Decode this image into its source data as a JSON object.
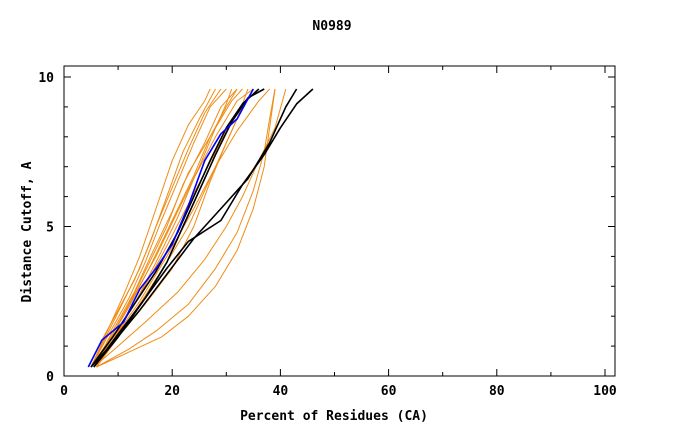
{
  "chart_data": {
    "type": "line",
    "title": "N0989",
    "xlabel": "Percent of Residues (CA)",
    "ylabel": "Distance Cutoff, A",
    "xlim": [
      0,
      100
    ],
    "ylim": [
      0,
      10
    ],
    "x_ticks": [
      0,
      20,
      40,
      60,
      80,
      100
    ],
    "y_ticks": [
      0,
      5,
      10
    ],
    "grid": false,
    "colors": {
      "orange": "#f08c14",
      "black": "#000000",
      "blue": "#0000ff"
    },
    "series": [
      {
        "name": "orange-1",
        "color": "orange",
        "points": [
          [
            4.5,
            0.3
          ],
          [
            7,
            1.2
          ],
          [
            10,
            2.2
          ],
          [
            13,
            3.2
          ],
          [
            16,
            4.5
          ],
          [
            19,
            6
          ],
          [
            22,
            7.5
          ],
          [
            25,
            8.6
          ],
          [
            28,
            9.6
          ]
        ]
      },
      {
        "name": "orange-2",
        "color": "orange",
        "points": [
          [
            5,
            0.3
          ],
          [
            8,
            1.4
          ],
          [
            11,
            2.5
          ],
          [
            14,
            3.6
          ],
          [
            17,
            5
          ],
          [
            20,
            6.3
          ],
          [
            23,
            7.6
          ],
          [
            26,
            8.8
          ],
          [
            29,
            9.6
          ]
        ]
      },
      {
        "name": "orange-3",
        "color": "orange",
        "points": [
          [
            5,
            0.3
          ],
          [
            8,
            1.3
          ],
          [
            12,
            2.6
          ],
          [
            15,
            3.8
          ],
          [
            18,
            5.2
          ],
          [
            21,
            6.5
          ],
          [
            24,
            7.8
          ],
          [
            27,
            9
          ],
          [
            30,
            9.6
          ]
        ]
      },
      {
        "name": "orange-4",
        "color": "orange",
        "points": [
          [
            5.5,
            0.3
          ],
          [
            9,
            1.4
          ],
          [
            12,
            2.4
          ],
          [
            15,
            3.5
          ],
          [
            19,
            5
          ],
          [
            22,
            6.4
          ],
          [
            26,
            7.8
          ],
          [
            29,
            9
          ],
          [
            32,
            9.6
          ]
        ]
      },
      {
        "name": "orange-5",
        "color": "orange",
        "points": [
          [
            5.5,
            0.3
          ],
          [
            9,
            1.5
          ],
          [
            13,
            2.8
          ],
          [
            16,
            4
          ],
          [
            20,
            5.5
          ],
          [
            23,
            6.8
          ],
          [
            27,
            8
          ],
          [
            31,
            9.2
          ],
          [
            33,
            9.6
          ]
        ]
      },
      {
        "name": "orange-6",
        "color": "orange",
        "points": [
          [
            6,
            0.3
          ],
          [
            9,
            1.2
          ],
          [
            13,
            2.4
          ],
          [
            17,
            3.8
          ],
          [
            21,
            5.3
          ],
          [
            24,
            6.6
          ],
          [
            28,
            8
          ],
          [
            32,
            9.2
          ],
          [
            35,
            9.6
          ]
        ]
      },
      {
        "name": "orange-7",
        "color": "orange",
        "points": [
          [
            6,
            0.3
          ],
          [
            10,
            1.5
          ],
          [
            14,
            2.7
          ],
          [
            18,
            4
          ],
          [
            22,
            5.4
          ],
          [
            26,
            6.8
          ],
          [
            30,
            8.2
          ],
          [
            34,
            9.3
          ],
          [
            37,
            9.6
          ]
        ]
      },
      {
        "name": "orange-8",
        "color": "orange",
        "points": [
          [
            6,
            0.3
          ],
          [
            10,
            1.3
          ],
          [
            14,
            2.4
          ],
          [
            19,
            3.8
          ],
          [
            23,
            5
          ],
          [
            26,
            6.2
          ],
          [
            29,
            7.4
          ],
          [
            32,
            8.6
          ],
          [
            34,
            9.6
          ]
        ]
      },
      {
        "name": "orange-9",
        "color": "orange",
        "points": [
          [
            6,
            0.3
          ],
          [
            10,
            1.3
          ],
          [
            15,
            2.4
          ],
          [
            20,
            3.6
          ],
          [
            24,
            5
          ],
          [
            27,
            6.5
          ],
          [
            30,
            7.8
          ],
          [
            33,
            9
          ],
          [
            35,
            9.6
          ]
        ]
      },
      {
        "name": "orange-10",
        "color": "orange",
        "points": [
          [
            6,
            0.3
          ],
          [
            12,
            0.8
          ],
          [
            18,
            1.3
          ],
          [
            23,
            2
          ],
          [
            28,
            3
          ],
          [
            32,
            4.2
          ],
          [
            35,
            5.6
          ],
          [
            37,
            7
          ],
          [
            38,
            8.3
          ],
          [
            39,
            9.6
          ]
        ]
      },
      {
        "name": "orange-11",
        "color": "orange",
        "points": [
          [
            6,
            0.3
          ],
          [
            12,
            0.9
          ],
          [
            17,
            1.5
          ],
          [
            23,
            2.4
          ],
          [
            28,
            3.6
          ],
          [
            32,
            4.8
          ],
          [
            35,
            6.2
          ],
          [
            37,
            7.5
          ],
          [
            38,
            8.6
          ],
          [
            39,
            9.6
          ]
        ]
      },
      {
        "name": "orange-12",
        "color": "orange",
        "points": [
          [
            5.5,
            0.3
          ],
          [
            10,
            1
          ],
          [
            15,
            1.8
          ],
          [
            21,
            2.8
          ],
          [
            26,
            3.9
          ],
          [
            30,
            5
          ],
          [
            33,
            6
          ],
          [
            36,
            7.2
          ],
          [
            39,
            8.3
          ],
          [
            41,
            9.6
          ]
        ]
      },
      {
        "name": "orange-13",
        "color": "orange",
        "points": [
          [
            5,
            0.3
          ],
          [
            9,
            1.2
          ],
          [
            14,
            2.5
          ],
          [
            19,
            4
          ],
          [
            24,
            5.6
          ],
          [
            28,
            7
          ],
          [
            32,
            8.2
          ],
          [
            36,
            9.2
          ],
          [
            38,
            9.6
          ]
        ]
      },
      {
        "name": "orange-14",
        "color": "orange",
        "points": [
          [
            5,
            0.3
          ],
          [
            9,
            1.4
          ],
          [
            13,
            2.7
          ],
          [
            17,
            4
          ],
          [
            21,
            5.5
          ],
          [
            25,
            7
          ],
          [
            28,
            8.3
          ],
          [
            30,
            9.1
          ],
          [
            31,
            9.6
          ]
        ]
      },
      {
        "name": "orange-15",
        "color": "orange",
        "points": [
          [
            5.5,
            0.3
          ],
          [
            8,
            1.1
          ],
          [
            12,
            2.3
          ],
          [
            16,
            3.7
          ],
          [
            20,
            5.2
          ],
          [
            24,
            6.7
          ],
          [
            27,
            8
          ],
          [
            30,
            9
          ],
          [
            32,
            9.6
          ]
        ]
      },
      {
        "name": "orange-16",
        "color": "orange",
        "points": [
          [
            5,
            0.3
          ],
          [
            7.5,
            1.3
          ],
          [
            11,
            2.7
          ],
          [
            14,
            4
          ],
          [
            17,
            5.6
          ],
          [
            20,
            7.2
          ],
          [
            23,
            8.4
          ],
          [
            26,
            9.2
          ],
          [
            27,
            9.6
          ]
        ]
      },
      {
        "name": "black-1",
        "color": "black",
        "points": [
          [
            5,
            0.3
          ],
          [
            9,
            1.1
          ],
          [
            14,
            2.2
          ],
          [
            19,
            3.4
          ],
          [
            24,
            4.6
          ],
          [
            29,
            5.6
          ],
          [
            34,
            6.6
          ],
          [
            38,
            7.8
          ],
          [
            41,
            9
          ],
          [
            43,
            9.6
          ]
        ]
      },
      {
        "name": "black-2",
        "color": "black",
        "points": [
          [
            5.5,
            0.3
          ],
          [
            10,
            1.3
          ],
          [
            15,
            2.6
          ],
          [
            19,
            3.6
          ],
          [
            23,
            4.5
          ],
          [
            29,
            5.2
          ],
          [
            33,
            6.4
          ],
          [
            37,
            7.4
          ],
          [
            40,
            8.3
          ],
          [
            43,
            9.1
          ],
          [
            46,
            9.6
          ]
        ]
      },
      {
        "name": "black-3",
        "color": "black",
        "points": [
          [
            5,
            0.3
          ],
          [
            9,
            1.3
          ],
          [
            13,
            2.4
          ],
          [
            17,
            3.5
          ],
          [
            21,
            4.8
          ],
          [
            24,
            6
          ],
          [
            27,
            7.2
          ],
          [
            30,
            8.3
          ],
          [
            33,
            9.1
          ],
          [
            36,
            9.6
          ]
        ]
      },
      {
        "name": "black-4",
        "color": "black",
        "points": [
          [
            5.5,
            0.3
          ],
          [
            10,
            1.4
          ],
          [
            15,
            2.6
          ],
          [
            19,
            3.8
          ],
          [
            22,
            5
          ],
          [
            25,
            6.2
          ],
          [
            28,
            7.4
          ],
          [
            31,
            8.5
          ],
          [
            34,
            9.3
          ],
          [
            37,
            9.6
          ]
        ]
      },
      {
        "name": "blue-1",
        "color": "blue",
        "points": [
          [
            4.5,
            0.3
          ],
          [
            7,
            1.2
          ],
          [
            11,
            1.8
          ],
          [
            14,
            2.9
          ],
          [
            17,
            3.6
          ],
          [
            20,
            4.4
          ],
          [
            23,
            5.7
          ],
          [
            26,
            7.2
          ],
          [
            29,
            8.1
          ],
          [
            32,
            8.6
          ],
          [
            35,
            9.6
          ]
        ]
      }
    ]
  }
}
